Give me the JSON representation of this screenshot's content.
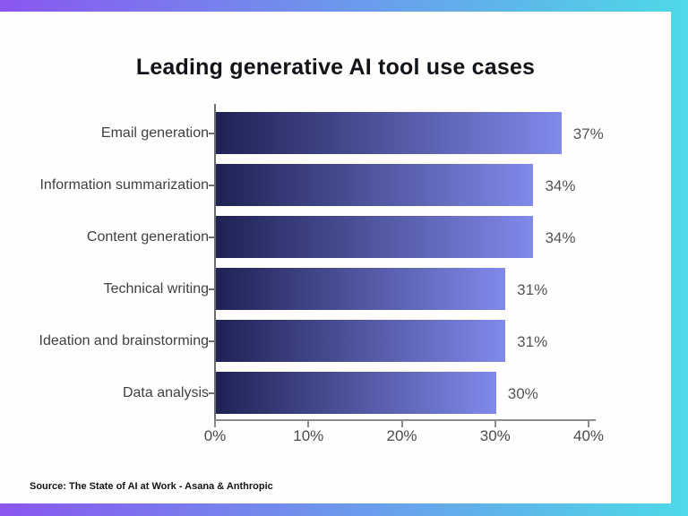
{
  "frame": {
    "gradient_start": "#8a57f0",
    "gradient_end": "#4ed9e8"
  },
  "chart_data": {
    "type": "bar",
    "orientation": "horizontal",
    "title": "Leading generative AI tool use cases",
    "categories": [
      "Email generation",
      "Information summarization",
      "Content generation",
      "Technical writing",
      "Ideation and brainstorming",
      "Data analysis"
    ],
    "values": [
      37,
      34,
      34,
      31,
      31,
      30
    ],
    "value_labels": [
      "37%",
      "34%",
      "34%",
      "31%",
      "31%",
      "30%"
    ],
    "xlabel": "",
    "ylabel": "",
    "xlim": [
      0,
      40
    ],
    "x_ticks": [
      0,
      10,
      20,
      30,
      40
    ],
    "x_tick_labels": [
      "0%",
      "10%",
      "20%",
      "30%",
      "40%"
    ],
    "grid": false,
    "legend": "none",
    "bar_gradient_start": "#1f2254",
    "bar_gradient_end": "#8189ea"
  },
  "source": {
    "text": "Source: The State of AI at Work - Asana & Anthropic"
  }
}
